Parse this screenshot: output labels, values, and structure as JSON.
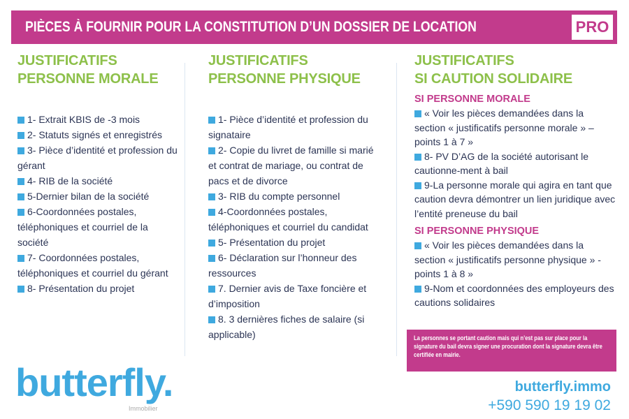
{
  "banner": {
    "title": "PIÈCES À FOURNIR POUR LA CONSTITUTION D’UN DOSSIER DE LOCATION",
    "badge": "PRO"
  },
  "columns": [
    {
      "heading": [
        "JUSTIFICATIFS",
        "PERSONNE MORALE"
      ],
      "items": [
        "1- Extrait KBIS de -3 mois",
        "2- Statuts signés et enregistrés",
        "3- Pièce d’identité et profession du gérant",
        "4- RIB de la société",
        "5-Dernier bilan de la société",
        "6-Coordonnées postales, téléphoniques et courriel de la société",
        "7- Coordonnées postales, téléphoniques et courriel du gérant",
        "8- Présentation du projet"
      ]
    },
    {
      "heading": [
        "JUSTIFICATIFS",
        "PERSONNE PHYSIQUE"
      ],
      "items": [
        "1- Pièce d’identité et profession du signataire",
        "2- Copie du livret de famille si marié et contrat de mariage, ou contrat de pacs et de divorce",
        "3- RIB du compte personnel",
        "4-Coordonnées postales, téléphoniques et courriel du candidat",
        "5- Présentation du projet",
        "6- Déclaration sur l’honneur des ressources",
        "7. Dernier avis de Taxe foncière et d’imposition",
        "8. 3 dernières fiches de salaire (si applicable)"
      ]
    },
    {
      "heading": [
        "JUSTIFICATIFS",
        "SI CAUTION SOLIDAIRE"
      ],
      "sections": [
        {
          "title": "SI PERSONNE MORALE",
          "items": [
            "« Voir les pièces demandées dans la section « justificatifs personne morale » – points 1 à 7 »",
            "8- PV D’AG de la société autorisant le cautionne-ment à bail",
            "9-La personne morale qui agira en tant que caution devra démontrer un lien juridique avec l’entité preneuse du bail"
          ]
        },
        {
          "title": "SI PERSONNE PHYSIQUE",
          "items": [
            "« Voir les pièces demandées dans la section « justificatifs personne physique » - points 1 à 8 »",
            "9-Nom et coordonnées des employeurs des cautions solidaires"
          ]
        }
      ],
      "note": "La personnes se portant caution mais qui n’est pas sur place pour la signature du bail devra signer une procuration dont la signature devra être certifiée en mairie."
    }
  ],
  "footer": {
    "logo": "butterfly.",
    "logo_sub": "Immobilier",
    "website": "butterfly.immo",
    "phone": "+590 590 19 19 02"
  },
  "colors": {
    "magenta": "#c23b8c",
    "green": "#8dc04a",
    "blue": "#3fa9df",
    "text": "#2c3555"
  }
}
